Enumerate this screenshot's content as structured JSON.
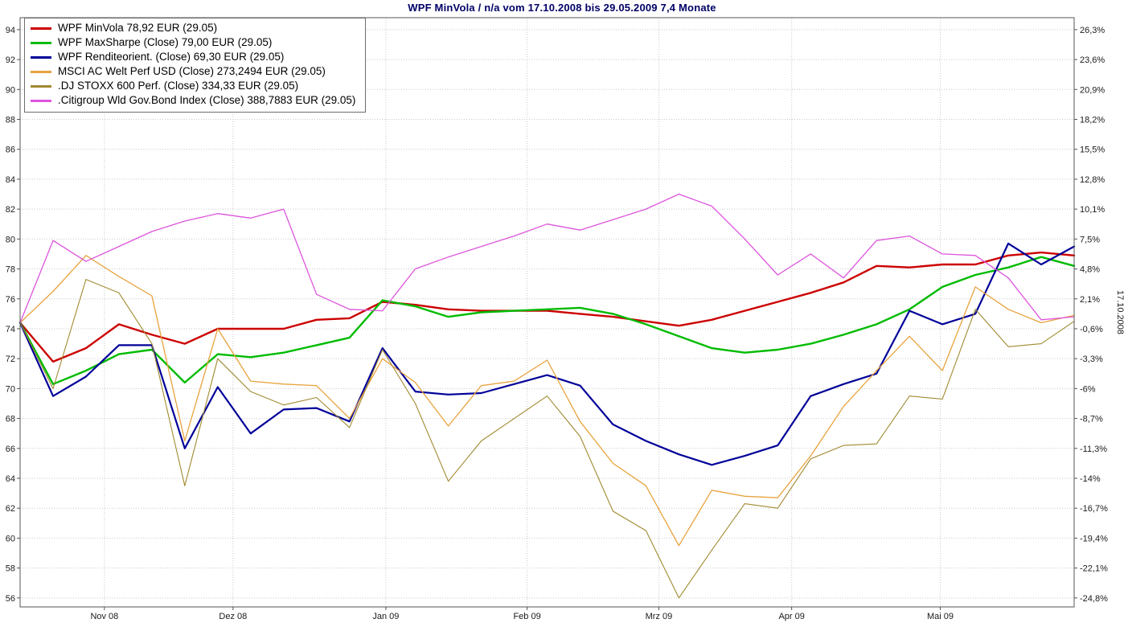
{
  "colors": {
    "title": "#000066",
    "grid": "#c9c9c9",
    "border": "#555555",
    "axis_text": "#1a1a1a",
    "background": "#ffffff"
  },
  "chart_data": {
    "type": "line",
    "title": "WPF MinVola / n/a vom 17.10.2008 bis 29.05.2009 7,4 Monate",
    "xlabel": "",
    "ylabel": "",
    "x_unit": "weekly",
    "grid": true,
    "legend_position": "top-left",
    "ylim": [
      55.4,
      94.8
    ],
    "y_left_ticks": [
      94,
      92,
      90,
      88,
      86,
      84,
      82,
      80,
      78,
      76,
      74,
      72,
      70,
      68,
      66,
      64,
      62,
      60,
      58,
      56
    ],
    "y_right_labels": [
      "26,3%",
      "23,6%",
      "20,9%",
      "18,2%",
      "15,5%",
      "12,8%",
      "10,1%",
      "7,5%",
      "4,8%",
      "2,1%",
      "-0,6%",
      "-3,3%",
      "-6%",
      "-8,7%",
      "-11,3%",
      "-14%",
      "-16,7%",
      "-19,4%",
      "-22,1%",
      "-24,8%"
    ],
    "right_axis_side_label": "17.10.2008",
    "x_tick_labels": [
      "Nov 08",
      "Dez 08",
      "Jan 09",
      "Feb 09",
      "Mrz 09",
      "Apr 09",
      "Mai 09"
    ],
    "x_tick_positions": [
      0.08,
      0.202,
      0.347,
      0.481,
      0.606,
      0.732,
      0.873
    ],
    "dates": [
      "17.10.08",
      "24.10.08",
      "31.10.08",
      "07.11.08",
      "14.11.08",
      "21.11.08",
      "28.11.08",
      "05.12.08",
      "12.12.08",
      "19.12.08",
      "26.12.08",
      "02.01.09",
      "09.01.09",
      "16.01.09",
      "23.01.09",
      "30.01.09",
      "06.02.09",
      "13.02.09",
      "20.02.09",
      "27.02.09",
      "06.03.09",
      "13.03.09",
      "20.03.09",
      "27.03.09",
      "03.04.09",
      "09.04.09",
      "17.04.09",
      "24.04.09",
      "30.04.09",
      "08.05.09",
      "15.05.09",
      "22.05.09",
      "29.05.09"
    ],
    "series": [
      {
        "id": "wpf-minvola",
        "name": "WPF MinVola",
        "legend_label": "WPF MinVola 78,92 EUR (29.05)",
        "color": "#cc0000",
        "width": 2.4,
        "values": [
          74.4,
          71.8,
          72.7,
          74.3,
          73.6,
          73.0,
          74.0,
          74.0,
          74.0,
          74.6,
          74.7,
          75.8,
          75.6,
          75.3,
          75.2,
          75.2,
          75.2,
          75.0,
          74.8,
          74.5,
          74.2,
          74.6,
          75.2,
          75.8,
          76.4,
          77.1,
          78.2,
          78.1,
          78.3,
          78.3,
          78.9,
          79.1,
          78.9
        ]
      },
      {
        "id": "wpf-maxsharpe",
        "name": "WPF MaxSharpe",
        "legend_label": "WPF MaxSharpe (Close) 79,00 EUR (29.05)",
        "color": "#00bb00",
        "width": 2.4,
        "values": [
          74.4,
          70.3,
          71.2,
          72.3,
          72.6,
          70.4,
          72.3,
          72.1,
          72.4,
          72.9,
          73.4,
          75.9,
          75.5,
          74.8,
          75.1,
          75.2,
          75.3,
          75.4,
          75.0,
          74.3,
          73.5,
          72.7,
          72.4,
          72.6,
          73.0,
          73.6,
          74.3,
          75.3,
          76.8,
          77.6,
          78.1,
          78.8,
          78.2
        ]
      },
      {
        "id": "wpf-renditeorient",
        "name": "WPF Renditeorient.",
        "legend_label": "WPF Renditeorient. (Close) 69,30 EUR (29.05)",
        "color": "#000099",
        "width": 2.2,
        "values": [
          74.4,
          69.5,
          70.8,
          72.9,
          72.9,
          66.0,
          70.1,
          67.0,
          68.6,
          68.7,
          67.8,
          72.7,
          69.8,
          69.6,
          69.7,
          70.3,
          70.9,
          70.2,
          67.6,
          66.5,
          65.6,
          64.9,
          65.5,
          66.2,
          69.5,
          70.3,
          71.0,
          75.2,
          74.3,
          75.0,
          79.7,
          78.3,
          79.5
        ]
      },
      {
        "id": "msci-ac-welt",
        "name": "MSCI AC Welt Perf USD",
        "legend_label": "MSCI AC Welt Perf USD (Close) 273,2494 EUR (29.05)",
        "color": "#e8a33d",
        "width": 1.3,
        "values": [
          74.4,
          76.5,
          78.9,
          77.5,
          76.2,
          66.5,
          74.0,
          70.5,
          70.3,
          70.2,
          68.0,
          72.0,
          70.4,
          67.5,
          70.2,
          70.5,
          71.9,
          67.8,
          65.0,
          63.5,
          59.5,
          63.2,
          62.8,
          62.7,
          65.5,
          68.8,
          71.2,
          73.5,
          71.2,
          76.8,
          75.3,
          74.4,
          74.9
        ]
      },
      {
        "id": "dj-stoxx-600",
        "name": ".DJ STOXX 600 Perf.",
        "legend_label": ".DJ STOXX 600 Perf. (Close) 334,33 EUR (29.05)",
        "color": "#a08a30",
        "width": 1.1,
        "values": [
          74.4,
          70.0,
          77.3,
          76.4,
          73.0,
          63.5,
          72.0,
          69.8,
          68.9,
          69.4,
          67.4,
          72.6,
          69.0,
          63.8,
          66.5,
          68.0,
          69.5,
          66.8,
          61.8,
          60.5,
          56.0,
          59.2,
          62.3,
          62.0,
          65.3,
          66.2,
          66.3,
          69.5,
          69.3,
          75.3,
          72.8,
          73.0,
          74.5
        ]
      },
      {
        "id": "citigroup-wld-gov-bond",
        "name": ".Citigroup Wld Gov.Bond Index",
        "legend_label": ".Citigroup Wld Gov.Bond Index (Close) 388,7883 EUR (29.05)",
        "color": "#dd55dd",
        "width": 1.3,
        "values": [
          74.4,
          79.9,
          78.5,
          79.5,
          80.5,
          81.2,
          81.7,
          81.4,
          82.0,
          76.3,
          75.3,
          75.2,
          78.0,
          78.8,
          79.5,
          80.2,
          81.0,
          80.6,
          81.3,
          82.0,
          83.0,
          82.2,
          80.0,
          77.6,
          79.0,
          77.4,
          79.9,
          80.2,
          79.0,
          78.9,
          77.4,
          74.6,
          74.8
        ]
      }
    ]
  }
}
